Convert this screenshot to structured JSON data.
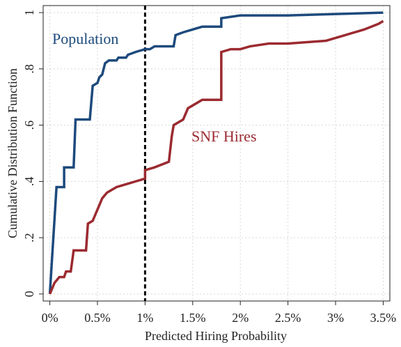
{
  "chart_data": {
    "type": "line",
    "x_label": "Predicted Hiring Probability",
    "y_label": "Cumulative Distribution Function",
    "xlim": [
      -0.07,
      3.57
    ],
    "ylim": [
      -0.025,
      1.025
    ],
    "xticks": [
      {
        "value": 0,
        "label": "0%"
      },
      {
        "value": 0.5,
        "label": "0.5%"
      },
      {
        "value": 1,
        "label": "1%"
      },
      {
        "value": 1.5,
        "label": "1.5%"
      },
      {
        "value": 2,
        "label": "2%"
      },
      {
        "value": 2.5,
        "label": "2.5%"
      },
      {
        "value": 3,
        "label": "3%"
      },
      {
        "value": 3.5,
        "label": "3.5%"
      }
    ],
    "yticks": [
      0,
      {
        "value": 0.2,
        "label": ".2"
      },
      {
        "value": 0.4,
        "label": ".4"
      },
      {
        "value": 0.6,
        "label": ".6"
      },
      {
        "value": 0.8,
        "label": ".8"
      },
      1
    ],
    "grid": true,
    "reference_line": 1,
    "series": [
      {
        "name": "Population",
        "color": "#1d4a7c",
        "x": [
          0,
          0.07,
          0.15,
          0.15,
          0.25,
          0.27,
          0.42,
          0.45,
          0.5,
          0.52,
          0.55,
          0.58,
          0.62,
          0.7,
          0.72,
          0.8,
          0.82,
          0.9,
          1.0,
          1.05,
          1.1,
          1.3,
          1.32,
          1.4,
          1.5,
          1.6,
          1.8,
          1.8,
          2.0,
          2.5,
          3.0,
          3.5
        ],
        "values": [
          0,
          0.38,
          0.38,
          0.45,
          0.45,
          0.62,
          0.62,
          0.74,
          0.75,
          0.77,
          0.78,
          0.82,
          0.83,
          0.83,
          0.84,
          0.84,
          0.85,
          0.86,
          0.87,
          0.87,
          0.88,
          0.88,
          0.92,
          0.93,
          0.94,
          0.95,
          0.95,
          0.98,
          0.99,
          0.99,
          0.995,
          1.0
        ]
      },
      {
        "name": "SNF Hires",
        "color": "#9b2a30",
        "x": [
          0,
          0.05,
          0.1,
          0.15,
          0.17,
          0.22,
          0.25,
          0.38,
          0.4,
          0.45,
          0.5,
          0.55,
          0.6,
          0.7,
          0.8,
          0.9,
          1.0,
          1.0,
          1.1,
          1.25,
          1.28,
          1.3,
          1.4,
          1.45,
          1.55,
          1.6,
          1.8,
          1.8,
          1.9,
          2.0,
          2.1,
          2.3,
          2.5,
          2.9,
          3.1,
          3.3,
          3.45,
          3.5
        ],
        "values": [
          0,
          0.04,
          0.06,
          0.06,
          0.08,
          0.08,
          0.155,
          0.155,
          0.25,
          0.26,
          0.3,
          0.34,
          0.36,
          0.38,
          0.39,
          0.4,
          0.41,
          0.44,
          0.45,
          0.47,
          0.56,
          0.6,
          0.62,
          0.66,
          0.68,
          0.69,
          0.69,
          0.86,
          0.87,
          0.87,
          0.88,
          0.89,
          0.89,
          0.9,
          0.92,
          0.94,
          0.96,
          0.97
        ]
      }
    ]
  }
}
